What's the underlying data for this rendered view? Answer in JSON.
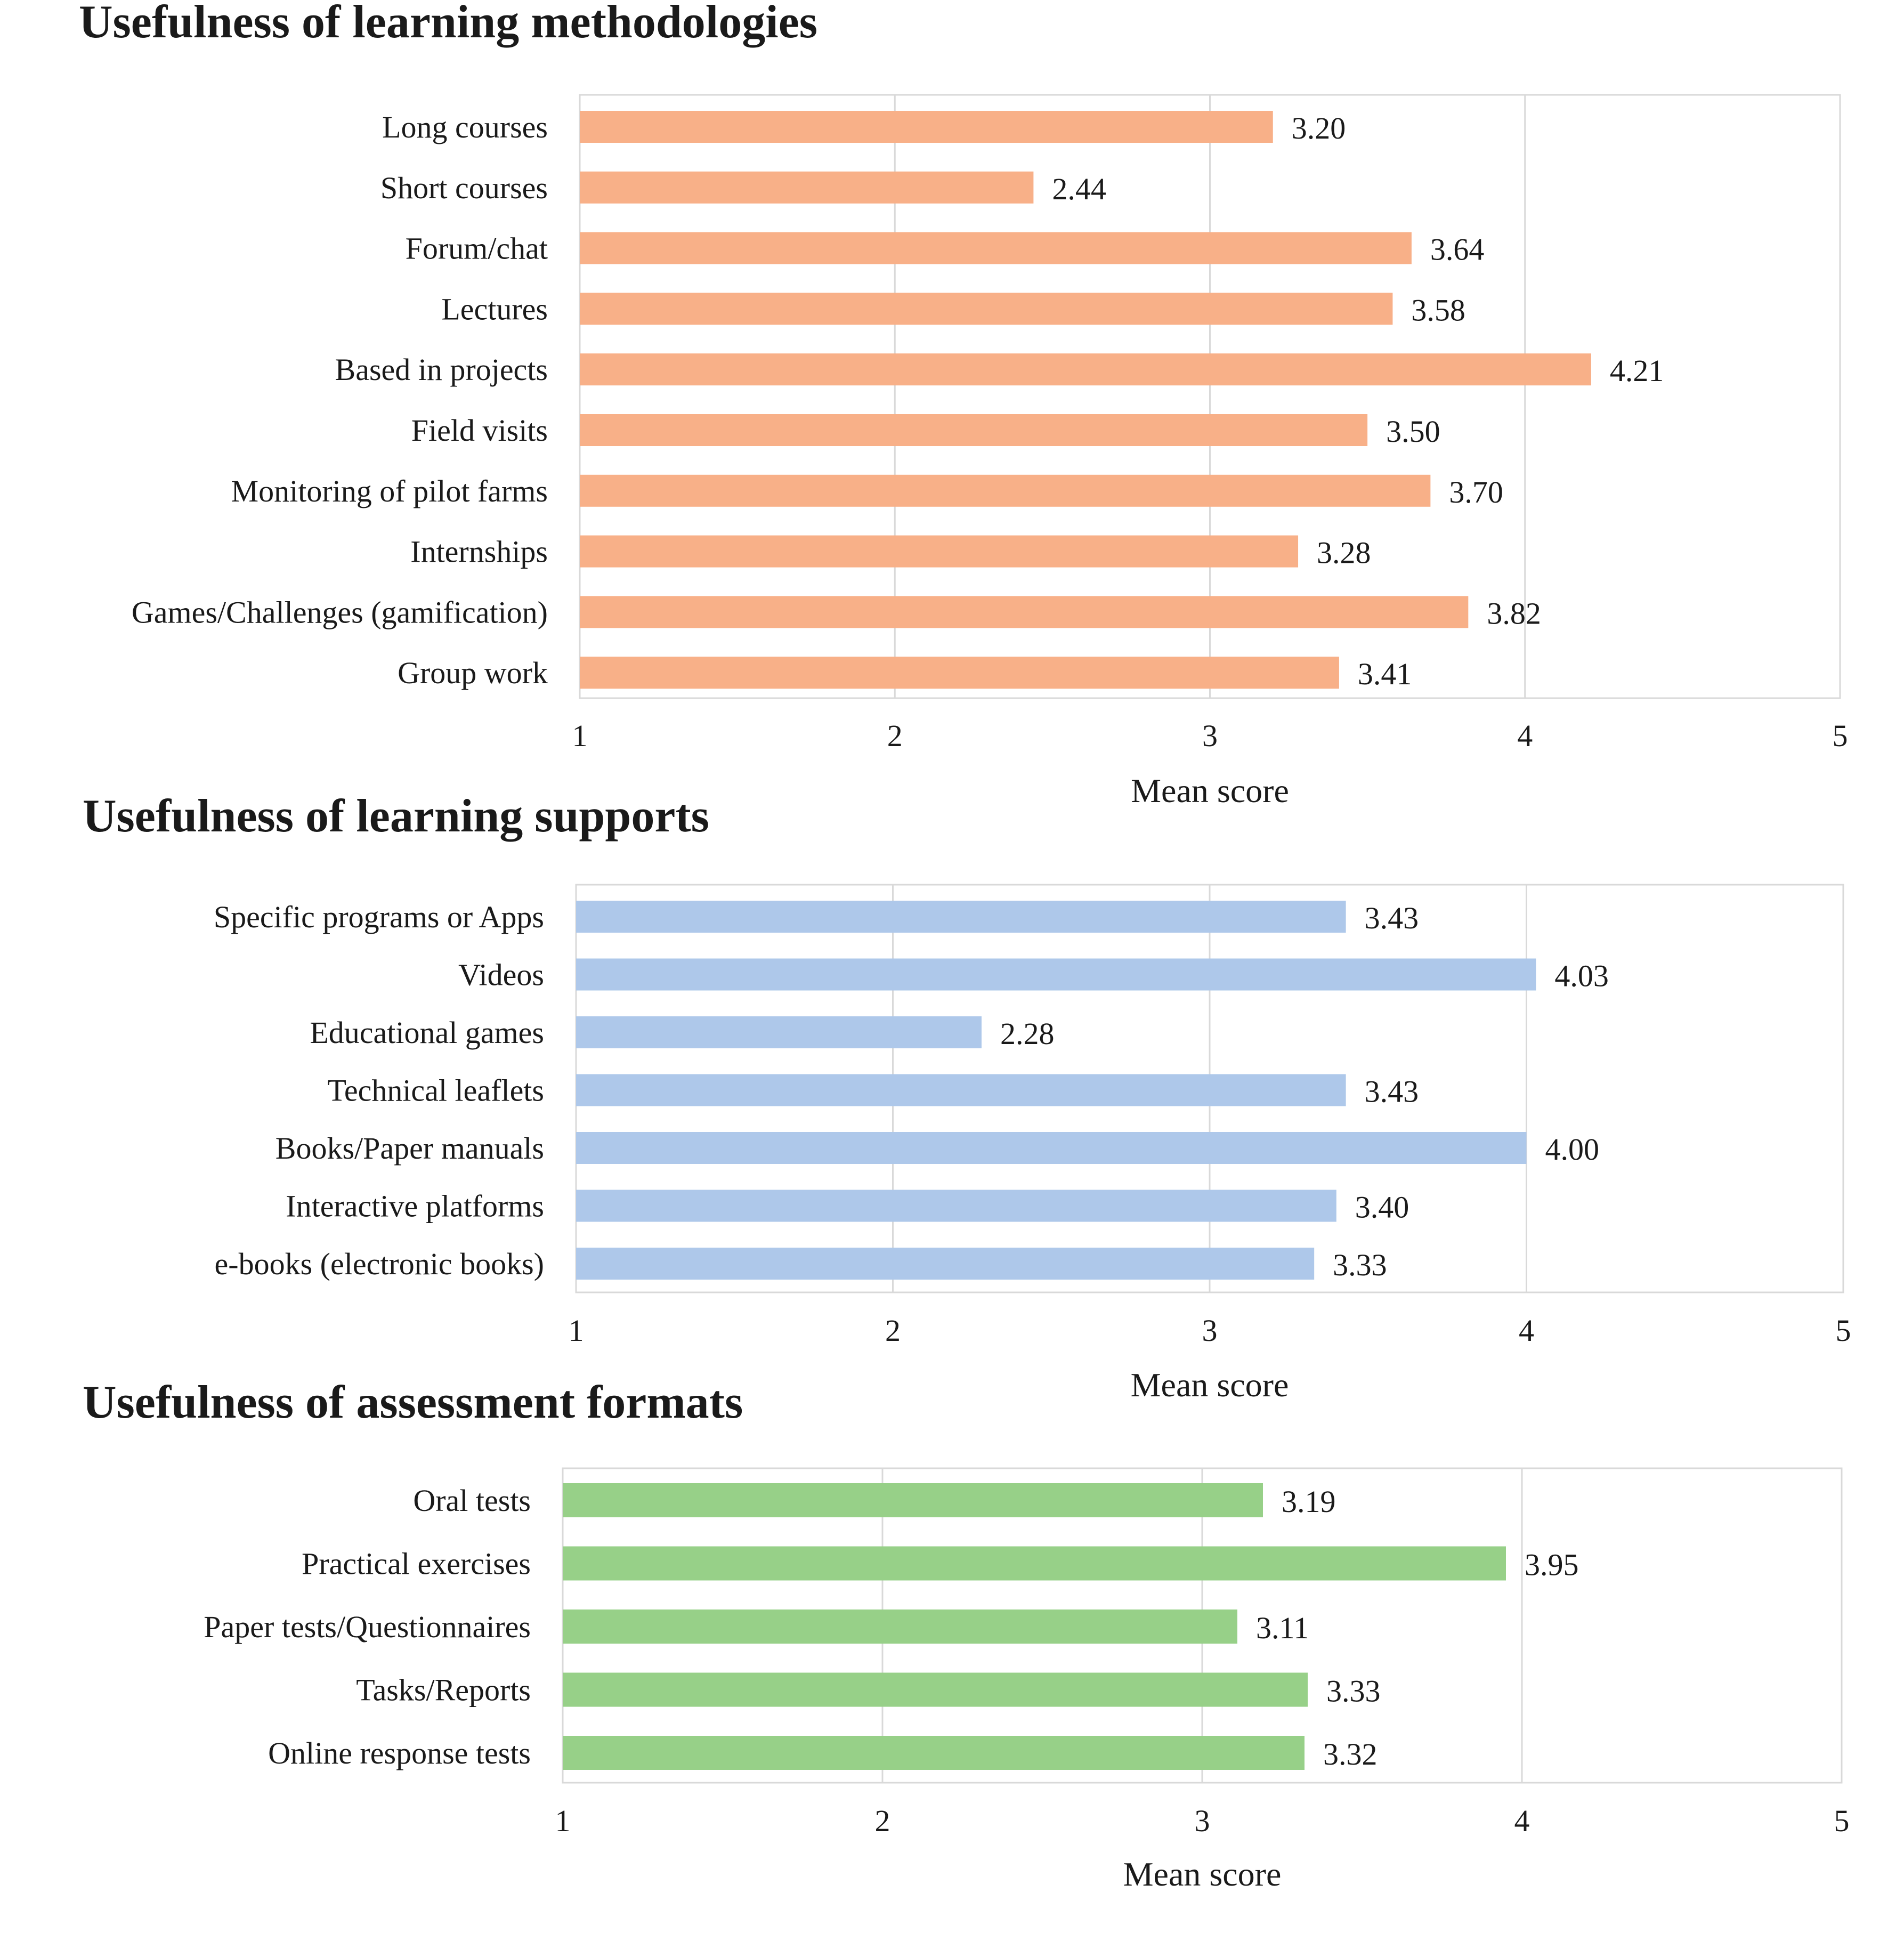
{
  "colors": {
    "methodologies": "#f8b088",
    "supports": "#aec8ea",
    "assessment": "#97d088",
    "grid": "#d9d9d9",
    "frame": "#d9d9d9",
    "text": "#1a1a1a"
  },
  "chart_data": [
    {
      "type": "bar",
      "orientation": "horizontal",
      "title": "Usefulness of learning methodologies",
      "xlabel": "Mean score",
      "ylabel": "",
      "xlim": [
        1,
        5
      ],
      "xticks": [
        "1",
        "2",
        "3",
        "4",
        "5"
      ],
      "grid": true,
      "categories": [
        "Long courses",
        "Short courses",
        "Forum/chat",
        "Lectures",
        "Based in projects",
        "Field visits",
        "Monitoring of pilot farms",
        "Internships",
        "Games/Challenges (gamification)",
        "Group work"
      ],
      "values": [
        3.2,
        2.44,
        3.64,
        3.58,
        4.21,
        3.5,
        3.7,
        3.28,
        3.82,
        3.41
      ],
      "value_labels": [
        "3.20",
        "2.44",
        "3.64",
        "3.58",
        "4.21",
        "3.50",
        "3.70",
        "3.28",
        "3.82",
        "3.41"
      ]
    },
    {
      "type": "bar",
      "orientation": "horizontal",
      "title": "Usefulness of learning supports",
      "xlabel": "Mean score",
      "ylabel": "",
      "xlim": [
        1,
        5
      ],
      "xticks": [
        "1",
        "2",
        "3",
        "4",
        "5"
      ],
      "grid": true,
      "categories": [
        "Specific programs or Apps",
        "Videos",
        "Educational games",
        "Technical leaflets",
        "Books/Paper manuals",
        "Interactive platforms",
        "e-books (electronic books)"
      ],
      "values": [
        3.43,
        4.03,
        2.28,
        3.43,
        4.0,
        3.4,
        3.33
      ],
      "value_labels": [
        "3.43",
        "4.03",
        "2.28",
        "3.43",
        "4.00",
        "3.40",
        "3.33"
      ]
    },
    {
      "type": "bar",
      "orientation": "horizontal",
      "title": "Usefulness of assessment formats",
      "xlabel": "Mean score",
      "ylabel": "",
      "xlim": [
        1,
        5
      ],
      "xticks": [
        "1",
        "2",
        "3",
        "4",
        "5"
      ],
      "grid": true,
      "categories": [
        "Oral tests",
        "Practical exercises",
        "Paper tests/Questionnaires",
        "Tasks/Reports",
        "Online response tests"
      ],
      "values": [
        3.19,
        3.95,
        3.11,
        3.33,
        3.32
      ],
      "value_labels": [
        "3.19",
        "3.95",
        "3.11",
        "3.33",
        "3.32"
      ]
    }
  ]
}
